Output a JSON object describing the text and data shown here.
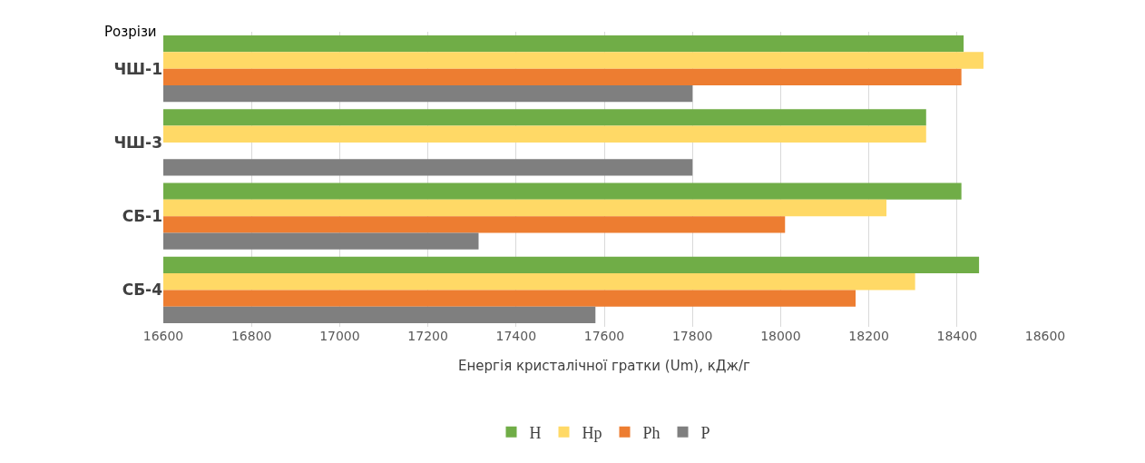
{
  "chart_data": {
    "type": "bar",
    "orientation": "horizontal",
    "ylabel": "Розрізи",
    "xlabel": "Енергія кристалічної гратки (Um), кДж/г",
    "categories": [
      "ЧШ-1",
      "ЧШ-3",
      "СБ-1",
      "СБ-4"
    ],
    "series": [
      {
        "name": "H",
        "color": "#70ad47",
        "values": [
          18415,
          18330,
          18410,
          18450
        ]
      },
      {
        "name": "Hp",
        "color": "#ffd966",
        "values": [
          18460,
          18330,
          18240,
          18305
        ]
      },
      {
        "name": "Ph",
        "color": "#ed7d31",
        "values": [
          18410,
          null,
          18010,
          18170
        ]
      },
      {
        "name": "P",
        "color": "#7f7f7f",
        "values": [
          17800,
          17800,
          17315,
          17580
        ]
      }
    ],
    "xlim": [
      16600,
      18600
    ],
    "xticks": [
      16600,
      16800,
      17000,
      17200,
      17400,
      17600,
      17800,
      18000,
      18200,
      18400,
      18600
    ],
    "grid": "x",
    "legend": "bottom"
  }
}
